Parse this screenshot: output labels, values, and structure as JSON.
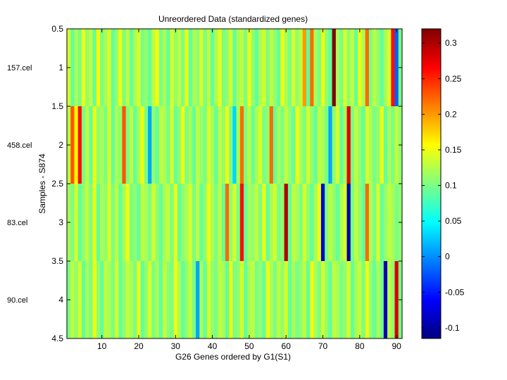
{
  "chart_data": {
    "type": "heatmap",
    "title": "Unreordered Data (standardized genes)",
    "xlabel": "G26 Genes ordered by G1(S1)",
    "ylabel": "Samples - S874",
    "row_labels": [
      "157.cel",
      "458.cel",
      "83.cel",
      "90.cel"
    ],
    "n_columns": 91,
    "xlim": [
      0.5,
      91.5
    ],
    "ylim": [
      0.5,
      4.5
    ],
    "x_ticks": [
      10,
      20,
      30,
      40,
      50,
      60,
      70,
      80,
      90
    ],
    "x_tick_labels": [
      "10",
      "20",
      "30",
      "40",
      "50",
      "60",
      "70",
      "80",
      "90"
    ],
    "y_ticks": [
      0.5,
      1,
      1.5,
      2,
      2.5,
      3,
      3.5,
      4,
      4.5
    ],
    "y_tick_labels": [
      "0.5",
      "1",
      "1.5",
      "2",
      "2.5",
      "3",
      "3.5",
      "4",
      "4.5"
    ],
    "colormap": "jet",
    "clim": [
      -0.115,
      0.32
    ],
    "colorbar_ticks": [
      -0.1,
      -0.05,
      0,
      0.05,
      0.1,
      0.15,
      0.2,
      0.25,
      0.3
    ],
    "colorbar_tick_labels": [
      "-0.1",
      "-0.05",
      "0",
      "0.05",
      "0.1",
      "0.15",
      "0.2",
      "0.25",
      "0.3"
    ],
    "values": [
      [
        0.14,
        0.09,
        0.12,
        0.1,
        0.15,
        0.11,
        0.13,
        0.09,
        0.16,
        0.1,
        0.12,
        0.14,
        0.09,
        0.11,
        0.15,
        0.1,
        0.13,
        0.09,
        0.12,
        0.14,
        0.1,
        0.11,
        0.09,
        0.13,
        0.15,
        0.1,
        0.12,
        0.09,
        0.14,
        0.11,
        0.13,
        0.1,
        0.15,
        0.09,
        0.12,
        0.11,
        0.14,
        0.1,
        0.13,
        0.09,
        0.12,
        0.15,
        0.1,
        0.11,
        0.14,
        0.09,
        0.12,
        0.13,
        0.1,
        0.15,
        0.11,
        0.09,
        0.12,
        0.14,
        0.1,
        0.13,
        0.11,
        0.09,
        0.15,
        0.12,
        0.1,
        0.14,
        0.11,
        0.13,
        0.2,
        0.09,
        0.22,
        0.12,
        0.1,
        0.15,
        0.11,
        0.09,
        0.32,
        0.12,
        0.1,
        0.14,
        0.11,
        0.13,
        0.09,
        0.15,
        0.12,
        0.22,
        0.1,
        0.13,
        0.11,
        0.09,
        0.12,
        0.14,
        0.26,
        -0.02,
        0.1
      ],
      [
        0.13,
        0.23,
        0.16,
        0.26,
        0.1,
        0.13,
        0.09,
        0.15,
        0.11,
        0.12,
        0.1,
        0.14,
        0.09,
        0.12,
        0.11,
        0.23,
        0.1,
        0.13,
        0.09,
        0.12,
        0.15,
        0.1,
        0.01,
        0.11,
        0.09,
        0.13,
        0.12,
        0.1,
        0.14,
        0.09,
        0.11,
        0.15,
        0.1,
        0.12,
        0.09,
        0.13,
        0.11,
        0.1,
        0.14,
        0.12,
        0.09,
        0.13,
        0.11,
        0.15,
        0.1,
        0.03,
        0.12,
        0.22,
        0.1,
        0.13,
        0.09,
        0.12,
        0.14,
        0.1,
        0.11,
        0.22,
        0.09,
        0.12,
        0.1,
        0.13,
        0.11,
        0.09,
        0.15,
        0.12,
        0.1,
        0.14,
        0.11,
        0.09,
        0.13,
        0.12,
        0.1,
        0.01,
        0.11,
        0.14,
        0.09,
        0.12,
        0.28,
        0.1,
        0.13,
        0.11,
        0.09,
        0.14,
        0.12,
        0.1,
        0.11,
        0.15,
        0.09,
        0.12,
        0.1,
        0.13,
        0.11
      ],
      [
        0.12,
        0.1,
        0.14,
        0.09,
        0.11,
        0.13,
        0.1,
        0.15,
        0.09,
        0.12,
        0.11,
        0.14,
        0.1,
        0.13,
        0.09,
        0.12,
        0.15,
        0.1,
        0.11,
        0.09,
        0.13,
        0.12,
        0.1,
        0.14,
        0.11,
        0.09,
        0.12,
        0.13,
        0.1,
        0.15,
        0.09,
        0.11,
        0.12,
        0.14,
        0.1,
        0.13,
        0.09,
        0.11,
        0.15,
        0.12,
        0.1,
        0.13,
        0.09,
        0.22,
        0.11,
        0.14,
        0.1,
        0.26,
        0.09,
        0.12,
        0.11,
        0.13,
        0.1,
        0.15,
        0.09,
        0.12,
        0.14,
        0.1,
        0.11,
        0.3,
        0.09,
        0.13,
        0.12,
        0.1,
        0.14,
        0.11,
        0.09,
        0.12,
        0.15,
        -0.08,
        0.1,
        0.13,
        0.11,
        0.09,
        0.12,
        0.14,
        -0.1,
        0.1,
        0.13,
        0.11,
        0.09,
        0.22,
        0.12,
        0.1,
        0.14,
        0.09,
        0.11,
        0.13,
        0.12,
        0.1,
        0.11
      ],
      [
        0.1,
        0.13,
        0.11,
        0.14,
        0.09,
        0.12,
        0.1,
        0.15,
        0.11,
        0.09,
        0.13,
        0.12,
        0.1,
        0.14,
        0.09,
        0.11,
        0.13,
        0.12,
        0.1,
        0.15,
        0.09,
        0.11,
        0.14,
        0.1,
        0.12,
        0.09,
        0.13,
        0.11,
        0.1,
        0.15,
        0.12,
        0.09,
        0.11,
        0.13,
        0.1,
        0.01,
        0.12,
        0.09,
        0.14,
        0.11,
        0.1,
        0.13,
        0.12,
        0.09,
        0.15,
        0.1,
        0.11,
        0.14,
        0.09,
        0.12,
        0.13,
        0.1,
        0.11,
        0.09,
        0.15,
        0.12,
        0.1,
        0.13,
        0.11,
        0.14,
        0.09,
        0.12,
        0.1,
        0.11,
        0.13,
        0.09,
        0.15,
        0.12,
        0.1,
        0.14,
        0.11,
        0.09,
        0.13,
        0.12,
        0.1,
        0.11,
        0.14,
        0.09,
        0.12,
        0.13,
        0.1,
        0.15,
        0.11,
        0.09,
        0.12,
        0.1,
        -0.09,
        0.13,
        0.11,
        0.28,
        0.1
      ]
    ]
  }
}
